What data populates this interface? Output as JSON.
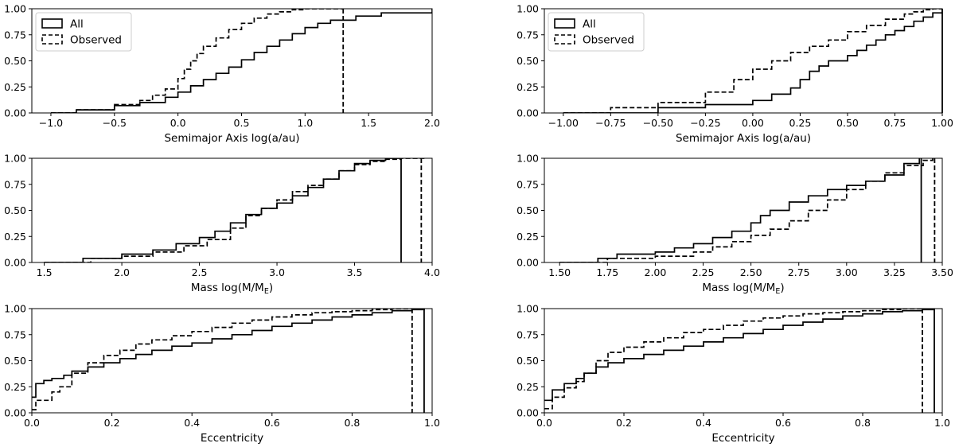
{
  "chart_data": [
    {
      "id": "a_left",
      "type": "line",
      "subtype": "cdf-step",
      "xlabel": "Semimajor Axis log(a/au)",
      "xlim": [
        -1.15,
        2.0
      ],
      "ylim": [
        0,
        1
      ],
      "xticks": [
        -1.0,
        -0.5,
        0.0,
        0.5,
        1.0,
        1.5,
        2.0
      ],
      "xtick_labels": [
        "−1.0",
        "−0.5",
        "0.0",
        "0.5",
        "1.0",
        "1.5",
        "2.0"
      ],
      "yticks": [
        0,
        0.25,
        0.5,
        0.75,
        1.0
      ],
      "ytick_labels": [
        "0.00",
        "0.25",
        "0.50",
        "0.75",
        "1.00"
      ],
      "legend": {
        "position": "top-left",
        "entries": [
          {
            "label": "All",
            "style": "solid"
          },
          {
            "label": "Observed",
            "style": "dashed"
          }
        ]
      },
      "series": [
        {
          "name": "All",
          "style": "solid",
          "x": [
            -1.0,
            -0.8,
            -0.5,
            -0.3,
            -0.1,
            0.0,
            0.1,
            0.2,
            0.3,
            0.4,
            0.5,
            0.6,
            0.7,
            0.8,
            0.9,
            1.0,
            1.1,
            1.2,
            1.4,
            1.6,
            2.0
          ],
          "y": [
            0.0,
            0.03,
            0.07,
            0.1,
            0.15,
            0.2,
            0.26,
            0.32,
            0.38,
            0.44,
            0.51,
            0.58,
            0.64,
            0.7,
            0.76,
            0.82,
            0.86,
            0.89,
            0.93,
            0.96,
            1.0
          ]
        },
        {
          "name": "Observed",
          "style": "dashed",
          "x": [
            -1.0,
            -0.8,
            -0.5,
            -0.3,
            -0.2,
            -0.1,
            0.0,
            0.05,
            0.1,
            0.15,
            0.2,
            0.3,
            0.4,
            0.5,
            0.6,
            0.7,
            0.8,
            0.9,
            1.0,
            1.1,
            1.3
          ],
          "y": [
            0.0,
            0.03,
            0.08,
            0.12,
            0.17,
            0.23,
            0.33,
            0.42,
            0.5,
            0.57,
            0.64,
            0.72,
            0.8,
            0.86,
            0.91,
            0.95,
            0.97,
            0.99,
            1.0,
            1.0,
            1.0
          ]
        }
      ],
      "vlines": [
        {
          "x": 1.3,
          "style": "dashed"
        }
      ]
    },
    {
      "id": "a_right",
      "type": "line",
      "subtype": "cdf-step",
      "xlabel": "Semimajor Axis log(a/au)",
      "xlim": [
        -1.1,
        1.0
      ],
      "ylim": [
        0,
        1
      ],
      "xticks": [
        -1.0,
        -0.75,
        -0.5,
        -0.25,
        0.0,
        0.25,
        0.5,
        0.75,
        1.0
      ],
      "xtick_labels": [
        "−1.00",
        "−0.75",
        "−0.50",
        "−0.25",
        "0.00",
        "0.25",
        "0.50",
        "0.75",
        "1.00"
      ],
      "yticks": [
        0,
        0.25,
        0.5,
        0.75,
        1.0
      ],
      "ytick_labels": [
        "0.00",
        "0.25",
        "0.50",
        "0.75",
        "1.00"
      ],
      "legend": {
        "position": "top-left",
        "entries": [
          {
            "label": "All",
            "style": "solid"
          },
          {
            "label": "Observed",
            "style": "dashed"
          }
        ]
      },
      "series": [
        {
          "name": "All",
          "style": "solid",
          "x": [
            -1.0,
            -0.5,
            -0.25,
            0.0,
            0.1,
            0.2,
            0.25,
            0.3,
            0.35,
            0.4,
            0.5,
            0.55,
            0.6,
            0.65,
            0.7,
            0.75,
            0.8,
            0.85,
            0.9,
            0.95,
            1.0
          ],
          "y": [
            0.0,
            0.05,
            0.08,
            0.12,
            0.18,
            0.24,
            0.32,
            0.4,
            0.45,
            0.5,
            0.55,
            0.6,
            0.65,
            0.7,
            0.75,
            0.79,
            0.83,
            0.88,
            0.92,
            0.96,
            1.0
          ]
        },
        {
          "name": "Observed",
          "style": "dashed",
          "x": [
            -1.0,
            -0.75,
            -0.5,
            -0.25,
            -0.1,
            0.0,
            0.1,
            0.2,
            0.3,
            0.4,
            0.5,
            0.6,
            0.7,
            0.8,
            0.85,
            0.9,
            0.95,
            1.0
          ],
          "y": [
            0.0,
            0.05,
            0.1,
            0.2,
            0.32,
            0.42,
            0.5,
            0.58,
            0.64,
            0.7,
            0.78,
            0.84,
            0.9,
            0.95,
            0.97,
            0.99,
            1.0,
            1.0
          ]
        }
      ],
      "vlines": [
        {
          "x": 1.0,
          "style": "solid"
        }
      ]
    },
    {
      "id": "m_left",
      "type": "line",
      "subtype": "cdf-step",
      "xlabel": "Mass log(M/M",
      "xlabel_sub": "E",
      "xlabel_end": ")",
      "xlim": [
        1.42,
        4.0
      ],
      "ylim": [
        0,
        1
      ],
      "xticks": [
        1.5,
        2.0,
        2.5,
        3.0,
        3.5,
        4.0
      ],
      "xtick_labels": [
        "1.5",
        "2.0",
        "2.5",
        "3.0",
        "3.5",
        "4.0"
      ],
      "yticks": [
        0,
        0.25,
        0.5,
        0.75,
        1.0
      ],
      "ytick_labels": [
        "0.00",
        "0.25",
        "0.50",
        "0.75",
        "1.00"
      ],
      "series": [
        {
          "name": "All",
          "style": "solid",
          "x": [
            1.5,
            1.75,
            2.0,
            2.2,
            2.35,
            2.5,
            2.6,
            2.7,
            2.8,
            2.9,
            3.0,
            3.1,
            3.2,
            3.3,
            3.4,
            3.5,
            3.6,
            3.7,
            3.8
          ],
          "y": [
            0.0,
            0.04,
            0.08,
            0.12,
            0.18,
            0.24,
            0.3,
            0.38,
            0.46,
            0.52,
            0.57,
            0.64,
            0.72,
            0.8,
            0.88,
            0.95,
            0.98,
            1.0,
            1.0
          ]
        },
        {
          "name": "Observed",
          "style": "dashed",
          "x": [
            1.5,
            1.8,
            2.0,
            2.2,
            2.4,
            2.55,
            2.7,
            2.8,
            2.9,
            3.0,
            3.1,
            3.2,
            3.3,
            3.4,
            3.5,
            3.6,
            3.7,
            3.8,
            3.95
          ],
          "y": [
            0.0,
            0.04,
            0.06,
            0.1,
            0.16,
            0.22,
            0.33,
            0.45,
            0.52,
            0.6,
            0.68,
            0.74,
            0.8,
            0.88,
            0.94,
            0.97,
            0.99,
            1.0,
            1.0
          ]
        }
      ],
      "vlines": [
        {
          "x": 3.8,
          "style": "solid"
        },
        {
          "x": 3.93,
          "style": "dashed"
        }
      ]
    },
    {
      "id": "m_right",
      "type": "line",
      "subtype": "cdf-step",
      "xlabel": "Mass log(M/M",
      "xlabel_sub": "E",
      "xlabel_end": ")",
      "xlim": [
        1.42,
        3.5
      ],
      "ylim": [
        0,
        1
      ],
      "xticks": [
        1.5,
        1.75,
        2.0,
        2.25,
        2.5,
        2.75,
        3.0,
        3.25,
        3.5
      ],
      "xtick_labels": [
        "1.50",
        "1.75",
        "2.00",
        "2.25",
        "2.50",
        "2.75",
        "3.00",
        "3.25",
        "3.50"
      ],
      "yticks": [
        0,
        0.25,
        0.5,
        0.75,
        1.0
      ],
      "ytick_labels": [
        "0.00",
        "0.25",
        "0.50",
        "0.75",
        "1.00"
      ],
      "series": [
        {
          "name": "All",
          "style": "solid",
          "x": [
            1.5,
            1.7,
            1.8,
            2.0,
            2.1,
            2.2,
            2.3,
            2.4,
            2.5,
            2.55,
            2.6,
            2.7,
            2.8,
            2.9,
            3.0,
            3.1,
            3.2,
            3.3,
            3.38
          ],
          "y": [
            0.0,
            0.04,
            0.08,
            0.1,
            0.14,
            0.18,
            0.24,
            0.3,
            0.38,
            0.45,
            0.5,
            0.58,
            0.64,
            0.7,
            0.74,
            0.78,
            0.84,
            0.95,
            1.0
          ]
        },
        {
          "name": "Observed",
          "style": "dashed",
          "x": [
            1.5,
            1.75,
            2.0,
            2.2,
            2.3,
            2.4,
            2.5,
            2.6,
            2.7,
            2.8,
            2.9,
            3.0,
            3.1,
            3.2,
            3.3,
            3.4,
            3.45
          ],
          "y": [
            0.0,
            0.04,
            0.06,
            0.1,
            0.15,
            0.2,
            0.26,
            0.32,
            0.4,
            0.5,
            0.6,
            0.7,
            0.78,
            0.86,
            0.93,
            0.98,
            1.0
          ]
        }
      ],
      "vlines": [
        {
          "x": 3.39,
          "style": "solid"
        },
        {
          "x": 3.46,
          "style": "dashed"
        }
      ]
    },
    {
      "id": "e_left",
      "type": "line",
      "subtype": "cdf-step",
      "xlabel": "Eccentricity",
      "xlim": [
        0.0,
        1.0
      ],
      "ylim": [
        0,
        1
      ],
      "xticks": [
        0.0,
        0.2,
        0.4,
        0.6,
        0.8,
        1.0
      ],
      "xtick_labels": [
        "0.0",
        "0.2",
        "0.4",
        "0.6",
        "0.8",
        "1.0"
      ],
      "yticks": [
        0,
        0.25,
        0.5,
        0.75,
        1.0
      ],
      "ytick_labels": [
        "0.00",
        "0.25",
        "0.50",
        "0.75",
        "1.00"
      ],
      "series": [
        {
          "name": "All",
          "style": "solid",
          "x": [
            0.0,
            0.01,
            0.03,
            0.05,
            0.08,
            0.1,
            0.14,
            0.18,
            0.22,
            0.26,
            0.3,
            0.35,
            0.4,
            0.45,
            0.5,
            0.55,
            0.6,
            0.65,
            0.7,
            0.75,
            0.8,
            0.85,
            0.9,
            0.95,
            0.98
          ],
          "y": [
            0.15,
            0.28,
            0.31,
            0.33,
            0.36,
            0.4,
            0.44,
            0.48,
            0.52,
            0.56,
            0.6,
            0.64,
            0.67,
            0.71,
            0.75,
            0.79,
            0.83,
            0.86,
            0.89,
            0.92,
            0.94,
            0.96,
            0.98,
            0.99,
            1.0
          ]
        },
        {
          "name": "Observed",
          "style": "dashed",
          "x": [
            0.0,
            0.01,
            0.05,
            0.07,
            0.1,
            0.14,
            0.18,
            0.22,
            0.26,
            0.3,
            0.35,
            0.4,
            0.45,
            0.5,
            0.55,
            0.6,
            0.65,
            0.7,
            0.75,
            0.8,
            0.85,
            0.9,
            0.95
          ],
          "y": [
            0.03,
            0.12,
            0.2,
            0.25,
            0.38,
            0.48,
            0.55,
            0.6,
            0.66,
            0.7,
            0.74,
            0.78,
            0.82,
            0.86,
            0.89,
            0.92,
            0.94,
            0.96,
            0.97,
            0.98,
            0.99,
            1.0,
            1.0
          ]
        }
      ],
      "vlines": [
        {
          "x": 0.98,
          "style": "solid"
        },
        {
          "x": 0.95,
          "style": "dashed"
        }
      ]
    },
    {
      "id": "e_right",
      "type": "line",
      "subtype": "cdf-step",
      "xlabel": "Eccentricity",
      "xlim": [
        0.0,
        1.0
      ],
      "ylim": [
        0,
        1
      ],
      "xticks": [
        0.0,
        0.2,
        0.4,
        0.6,
        0.8,
        1.0
      ],
      "xtick_labels": [
        "0.0",
        "0.2",
        "0.4",
        "0.6",
        "0.8",
        "1.0"
      ],
      "yticks": [
        0,
        0.25,
        0.5,
        0.75,
        1.0
      ],
      "ytick_labels": [
        "0.00",
        "0.25",
        "0.50",
        "0.75",
        "1.00"
      ],
      "series": [
        {
          "name": "All",
          "style": "solid",
          "x": [
            0.0,
            0.02,
            0.05,
            0.08,
            0.1,
            0.13,
            0.16,
            0.2,
            0.25,
            0.3,
            0.35,
            0.4,
            0.45,
            0.5,
            0.55,
            0.6,
            0.65,
            0.7,
            0.75,
            0.8,
            0.85,
            0.9,
            0.95,
            0.98
          ],
          "y": [
            0.12,
            0.22,
            0.28,
            0.33,
            0.38,
            0.44,
            0.48,
            0.52,
            0.56,
            0.6,
            0.64,
            0.68,
            0.72,
            0.76,
            0.8,
            0.84,
            0.87,
            0.9,
            0.93,
            0.95,
            0.97,
            0.98,
            0.99,
            1.0
          ]
        },
        {
          "name": "Observed",
          "style": "dashed",
          "x": [
            0.0,
            0.02,
            0.05,
            0.08,
            0.1,
            0.13,
            0.16,
            0.2,
            0.25,
            0.3,
            0.35,
            0.4,
            0.45,
            0.5,
            0.55,
            0.6,
            0.65,
            0.7,
            0.75,
            0.8,
            0.85,
            0.9,
            0.95
          ],
          "y": [
            0.04,
            0.15,
            0.24,
            0.3,
            0.38,
            0.5,
            0.58,
            0.63,
            0.68,
            0.72,
            0.77,
            0.8,
            0.84,
            0.88,
            0.91,
            0.93,
            0.95,
            0.96,
            0.97,
            0.98,
            0.99,
            1.0,
            1.0
          ]
        }
      ],
      "vlines": [
        {
          "x": 0.98,
          "style": "solid"
        },
        {
          "x": 0.95,
          "style": "dashed"
        }
      ]
    }
  ]
}
